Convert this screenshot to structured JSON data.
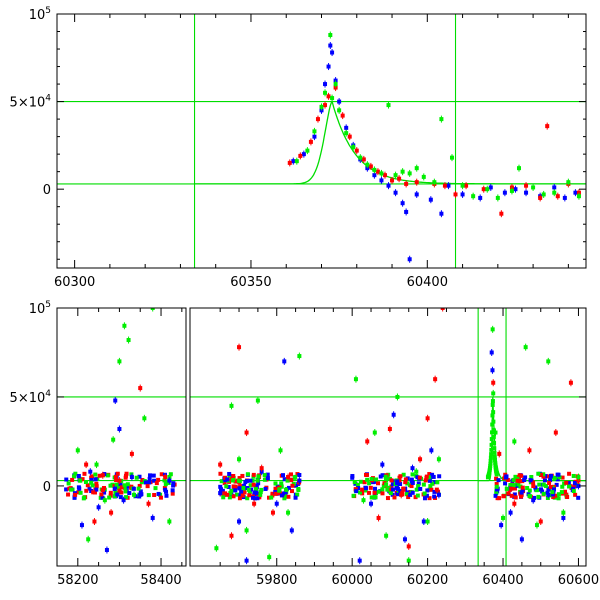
{
  "chart_data": [
    {
      "type": "scatter",
      "xlim": [
        60295,
        60445
      ],
      "ylim": [
        -45000,
        100000
      ],
      "xticks": [
        "60300",
        "60350",
        "60400"
      ],
      "xtick_values": [
        60300,
        60350,
        60400
      ],
      "ytick_values": [
        0,
        50000,
        100000
      ],
      "ytick_labels": [
        {
          "base": "0",
          "exp": ""
        },
        {
          "base": "5×10",
          "exp": "4"
        },
        {
          "base": "10",
          "exp": "5"
        }
      ],
      "vlines": [
        60334,
        60408
      ],
      "hlines": [
        3000,
        50000
      ],
      "model_peak": {
        "x0": 60373,
        "peak": 50000,
        "rise": 3.2,
        "decay": 6.5,
        "baseline": 3000,
        "start": 60334
      },
      "series": [
        {
          "color": "#0000ff",
          "points": [
            [
              60362,
              16000
            ],
            [
              60365,
              20000
            ],
            [
              60368,
              30000
            ],
            [
              60370,
              45000
            ],
            [
              60371,
              60000
            ],
            [
              60372,
              70000
            ],
            [
              60372.5,
              82000
            ],
            [
              60373,
              78000
            ],
            [
              60374,
              62000
            ],
            [
              60375,
              50000
            ],
            [
              60377,
              35000
            ],
            [
              60379,
              25000
            ],
            [
              60381,
              17000
            ],
            [
              60383,
              12000
            ],
            [
              60385,
              8000
            ],
            [
              60387,
              5000
            ],
            [
              60389,
              2000
            ],
            [
              60391,
              -2000
            ],
            [
              60393,
              -8000
            ],
            [
              60394,
              -13000
            ],
            [
              60395,
              -40000
            ],
            [
              60397,
              -3000
            ],
            [
              60401,
              -6000
            ],
            [
              60404,
              -14000
            ],
            [
              60406,
              2000
            ],
            [
              60410,
              -3000
            ],
            [
              60415,
              -5000
            ],
            [
              60418,
              1000
            ],
            [
              60422,
              -2000
            ],
            [
              60425,
              0
            ],
            [
              60428,
              -2000
            ],
            [
              60432,
              -4000
            ],
            [
              60436,
              1000
            ],
            [
              60439,
              -5000
            ],
            [
              60442,
              -2000
            ]
          ]
        },
        {
          "color": "#ff0000",
          "points": [
            [
              60361,
              15000
            ],
            [
              60364,
              19000
            ],
            [
              60367,
              27000
            ],
            [
              60369,
              40000
            ],
            [
              60371,
              48000
            ],
            [
              60372,
              53000
            ],
            [
              60374,
              58000
            ],
            [
              60376,
              42000
            ],
            [
              60378,
              30000
            ],
            [
              60380,
              22000
            ],
            [
              60382,
              17000
            ],
            [
              60384,
              13000
            ],
            [
              60386,
              10000
            ],
            [
              60388,
              8000
            ],
            [
              60390,
              5000
            ],
            [
              60392,
              6000
            ],
            [
              60394,
              3000
            ],
            [
              60397,
              4000
            ],
            [
              60402,
              3000
            ],
            [
              60405,
              2000
            ],
            [
              60408,
              -3000
            ],
            [
              60411,
              2000
            ],
            [
              60416,
              0
            ],
            [
              60421,
              -14000
            ],
            [
              60424,
              1000
            ],
            [
              60428,
              2000
            ],
            [
              60432,
              -5000
            ],
            [
              60434,
              36000
            ],
            [
              60437,
              -4000
            ],
            [
              60440,
              3000
            ],
            [
              60443,
              -2000
            ]
          ]
        },
        {
          "color": "#00ee00",
          "points": [
            [
              60363,
              16000
            ],
            [
              60366,
              22000
            ],
            [
              60368,
              33000
            ],
            [
              60370,
              47000
            ],
            [
              60371,
              55000
            ],
            [
              60372.5,
              88000
            ],
            [
              60373,
              52000
            ],
            [
              60374,
              60000
            ],
            [
              60375,
              45000
            ],
            [
              60377,
              32000
            ],
            [
              60379,
              24000
            ],
            [
              60381,
              18000
            ],
            [
              60383,
              14000
            ],
            [
              60385,
              11000
            ],
            [
              60387,
              9000
            ],
            [
              60389,
              48000
            ],
            [
              60391,
              8000
            ],
            [
              60393,
              10000
            ],
            [
              60395,
              9000
            ],
            [
              60397,
              12000
            ],
            [
              60399,
              7000
            ],
            [
              60402,
              4000
            ],
            [
              60404,
              40000
            ],
            [
              60407,
              18000
            ],
            [
              60410,
              2000
            ],
            [
              60413,
              -4000
            ],
            [
              60417,
              0
            ],
            [
              60420,
              -5000
            ],
            [
              60424,
              -1000
            ],
            [
              60426,
              12000
            ],
            [
              60430,
              1000
            ],
            [
              60433,
              -3000
            ],
            [
              60436,
              -2000
            ],
            [
              60440,
              4000
            ],
            [
              60443,
              -4000
            ]
          ]
        }
      ]
    },
    {
      "type": "scatter",
      "broken_x": true,
      "segments": [
        {
          "xlim": [
            58150,
            58460
          ],
          "xticks": [
            "58200",
            "58400"
          ],
          "xtick_values": [
            58200,
            58400
          ]
        },
        {
          "xlim": [
            59570,
            60620
          ],
          "xticks": [
            "59800",
            "60000",
            "60200",
            "60400",
            "60600"
          ],
          "xtick_values": [
            59800,
            60000,
            60200,
            60400,
            60600
          ]
        }
      ],
      "ylim": [
        -45000,
        100000
      ],
      "ytick_values": [
        0,
        50000,
        100000
      ],
      "ytick_labels": [
        {
          "base": "0",
          "exp": ""
        },
        {
          "base": "5×10",
          "exp": "4"
        },
        {
          "base": "10",
          "exp": "5"
        }
      ],
      "vlines": [
        60334,
        60408
      ],
      "hlines": [
        3000,
        50000
      ],
      "model_peak": {
        "x0": 60373,
        "peak": 50000,
        "rise": 3.2,
        "decay": 6.5,
        "baseline": 3000,
        "start": 60334
      },
      "series": [
        {
          "color": "#0000ff",
          "points": [
            [
              58210,
              -22000
            ],
            [
              58230,
              8000
            ],
            [
              58250,
              -12000
            ],
            [
              58270,
              -36000
            ],
            [
              58290,
              48000
            ],
            [
              58300,
              32000
            ],
            [
              58310,
              -8000
            ],
            [
              58330,
              5000
            ],
            [
              58350,
              -5000
            ],
            [
              58380,
              -18000
            ],
            [
              58420,
              3000
            ],
            [
              59650,
              -4000
            ],
            [
              59700,
              -20000
            ],
            [
              59720,
              -42000
            ],
            [
              59760,
              8000
            ],
            [
              59800,
              -10000
            ],
            [
              59820,
              70000
            ],
            [
              59840,
              -25000
            ],
            [
              59860,
              3000
            ],
            [
              60020,
              -42000
            ],
            [
              60050,
              -10000
            ],
            [
              60080,
              12000
            ],
            [
              60110,
              40000
            ],
            [
              60140,
              -30000
            ],
            [
              60160,
              10000
            ],
            [
              60190,
              -20000
            ],
            [
              60210,
              20000
            ],
            [
              60230,
              -5000
            ],
            [
              60370,
              75000
            ],
            [
              60372,
              65000
            ],
            [
              60395,
              -22000
            ],
            [
              60420,
              -15000
            ],
            [
              60450,
              -30000
            ],
            [
              60480,
              -8000
            ],
            [
              60520,
              -5000
            ],
            [
              60560,
              -18000
            ],
            [
              60600,
              0
            ]
          ]
        },
        {
          "color": "#ff0000",
          "points": [
            [
              58220,
              12000
            ],
            [
              58240,
              -20000
            ],
            [
              58260,
              6000
            ],
            [
              58280,
              -15000
            ],
            [
              58300,
              3000
            ],
            [
              58330,
              18000
            ],
            [
              58350,
              55000
            ],
            [
              58370,
              -10000
            ],
            [
              58410,
              5000
            ],
            [
              59650,
              12000
            ],
            [
              59680,
              -28000
            ],
            [
              59700,
              78000
            ],
            [
              59720,
              30000
            ],
            [
              59740,
              -10000
            ],
            [
              59760,
              10000
            ],
            [
              59790,
              -15000
            ],
            [
              59830,
              5000
            ],
            [
              60040,
              25000
            ],
            [
              60070,
              -18000
            ],
            [
              60100,
              32000
            ],
            [
              60130,
              -5000
            ],
            [
              60150,
              -34000
            ],
            [
              60180,
              15000
            ],
            [
              60200,
              38000
            ],
            [
              60220,
              60000
            ],
            [
              60240,
              100000
            ],
            [
              60374,
              58000
            ],
            [
              60390,
              18000
            ],
            [
              60430,
              -10000
            ],
            [
              60470,
              20000
            ],
            [
              60500,
              -20000
            ],
            [
              60540,
              30000
            ],
            [
              60580,
              58000
            ],
            [
              60600,
              3000
            ]
          ]
        },
        {
          "color": "#00ee00",
          "points": [
            [
              58200,
              20000
            ],
            [
              58225,
              -30000
            ],
            [
              58245,
              12000
            ],
            [
              58265,
              -8000
            ],
            [
              58285,
              26000
            ],
            [
              58300,
              70000
            ],
            [
              58312,
              90000
            ],
            [
              58322,
              82000
            ],
            [
              58335,
              -5000
            ],
            [
              58360,
              38000
            ],
            [
              58380,
              100000
            ],
            [
              58420,
              -20000
            ],
            [
              59640,
              -35000
            ],
            [
              59680,
              45000
            ],
            [
              59700,
              15000
            ],
            [
              59720,
              -25000
            ],
            [
              59750,
              48000
            ],
            [
              59780,
              -40000
            ],
            [
              59810,
              20000
            ],
            [
              59830,
              -15000
            ],
            [
              59860,
              73000
            ],
            [
              60010,
              60000
            ],
            [
              60030,
              -8000
            ],
            [
              60060,
              30000
            ],
            [
              60090,
              -28000
            ],
            [
              60120,
              50000
            ],
            [
              60150,
              -42000
            ],
            [
              60170,
              8000
            ],
            [
              60200,
              -20000
            ],
            [
              60230,
              15000
            ],
            [
              60372.5,
              88000
            ],
            [
              60374,
              52000
            ],
            [
              60380,
              30000
            ],
            [
              60400,
              -18000
            ],
            [
              60430,
              25000
            ],
            [
              60460,
              78000
            ],
            [
              60490,
              -22000
            ],
            [
              60520,
              70000
            ],
            [
              60560,
              -15000
            ],
            [
              60600,
              5000
            ]
          ]
        }
      ]
    }
  ]
}
